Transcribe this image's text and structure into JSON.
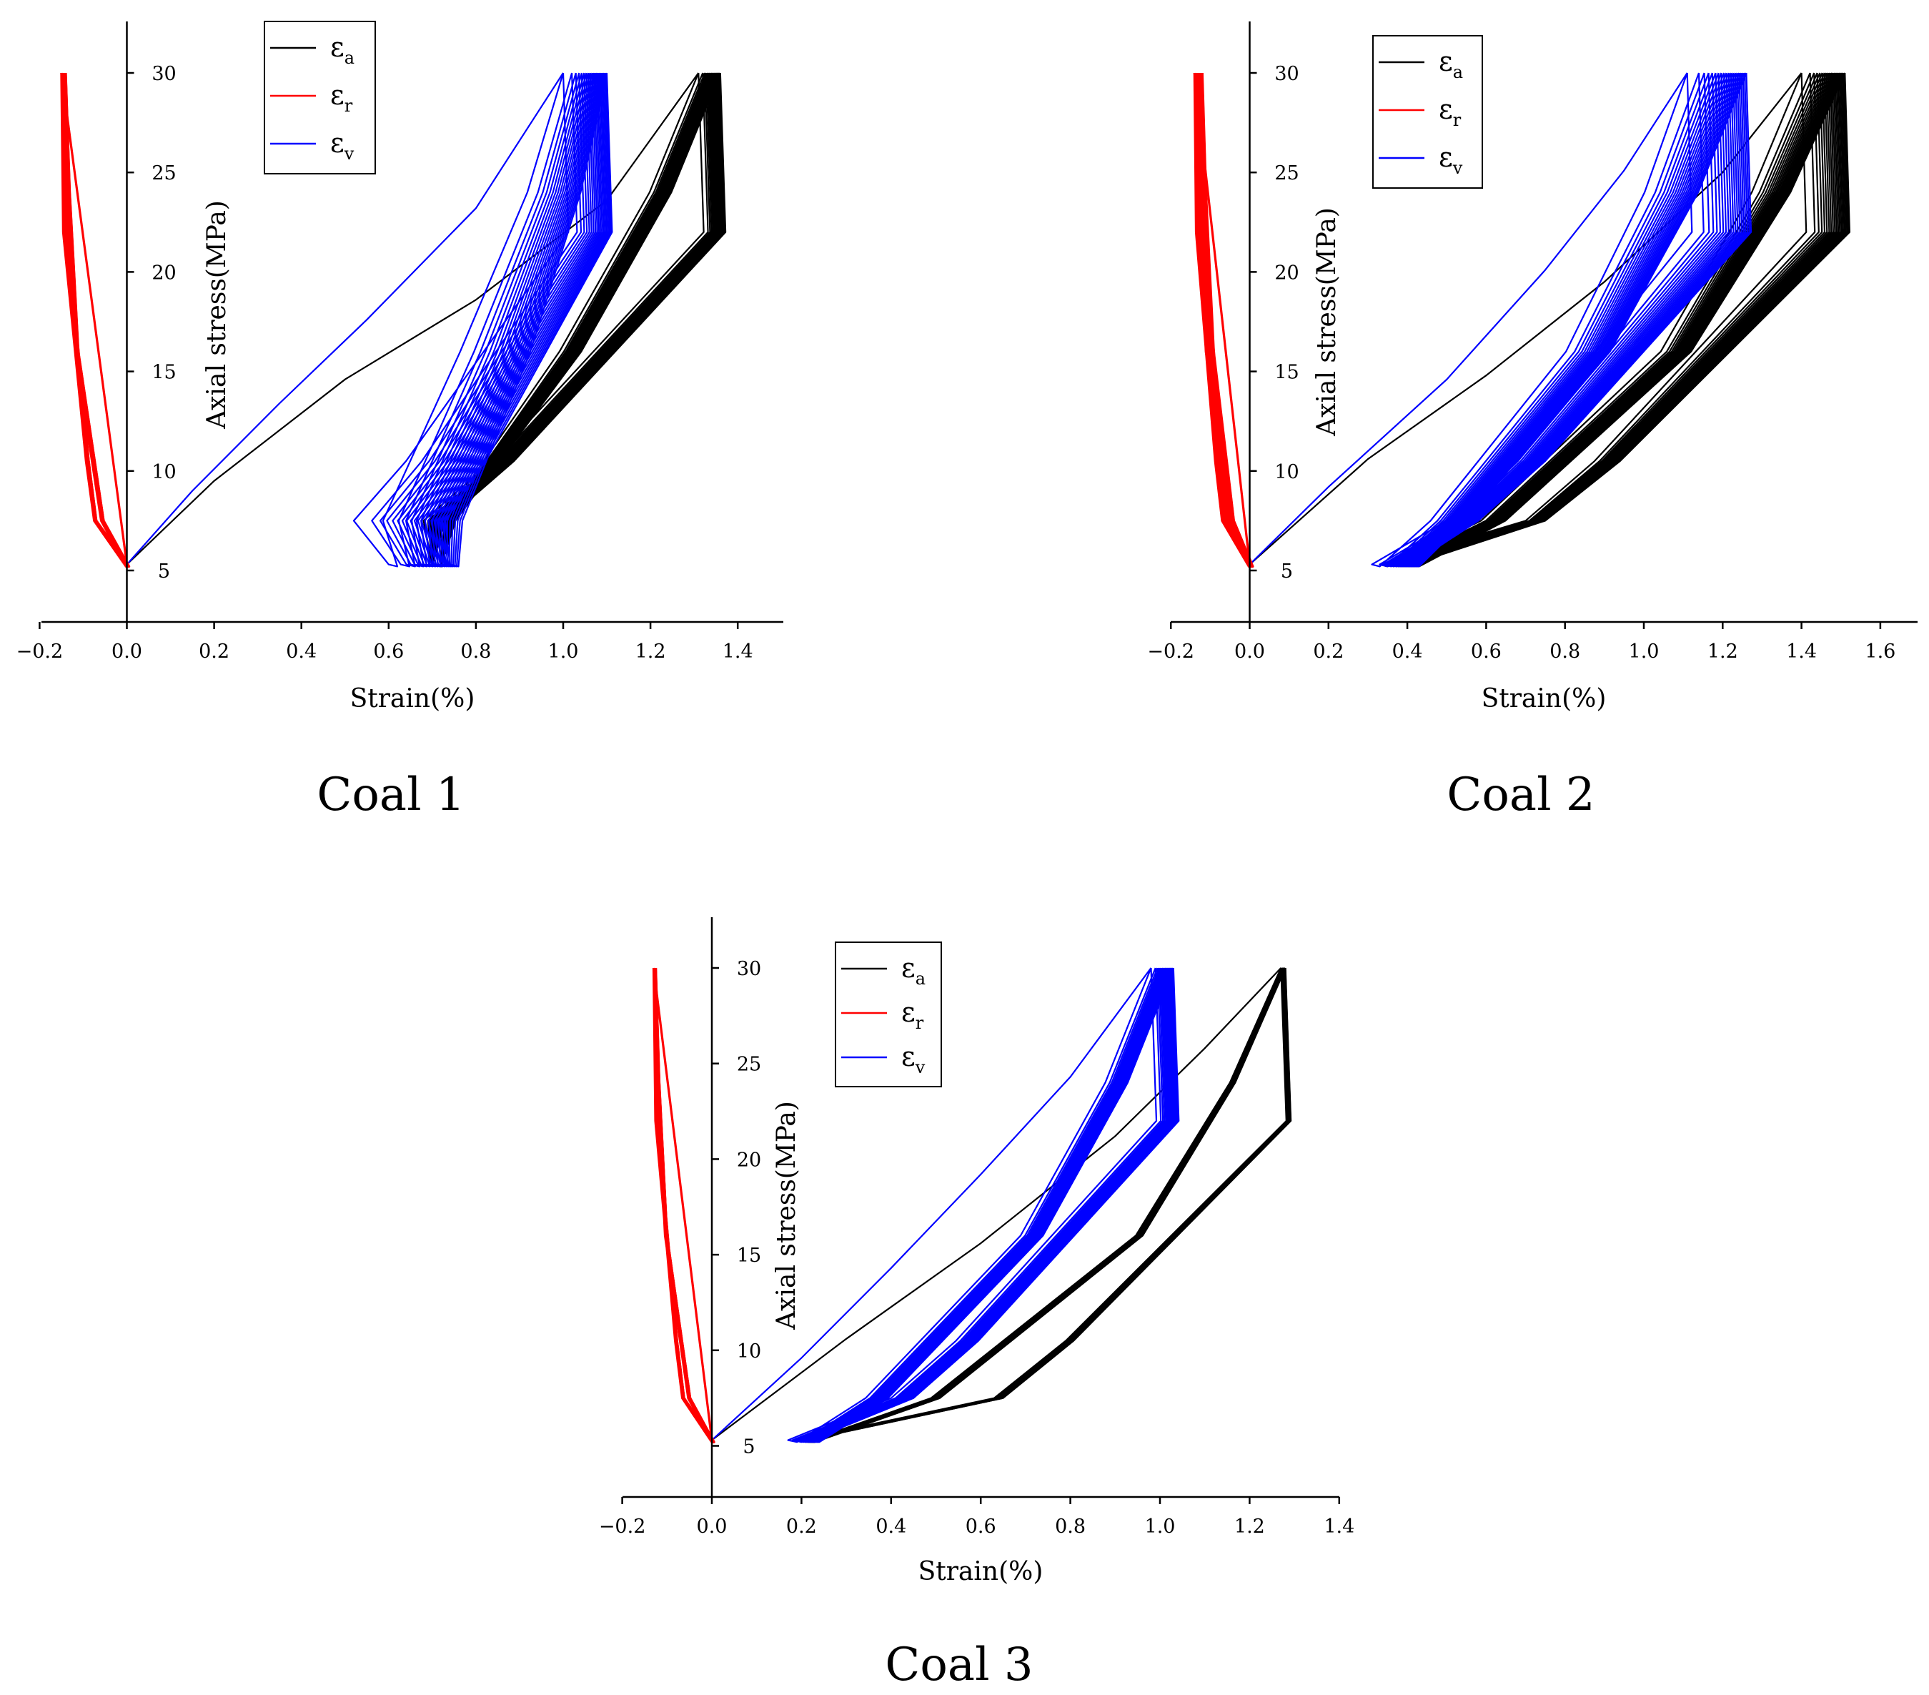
{
  "figure": {
    "axis_label_x": "Strain(%)",
    "axis_label_y": "Axial stress(MPa)"
  },
  "chart_data": [
    {
      "type": "line",
      "panel": "Coal 1",
      "title": "",
      "caption": "Coal 1",
      "xlabel": "Strain(%)",
      "ylabel": "Axial stress(MPa)",
      "xlim": [
        -0.2,
        1.5
      ],
      "ylim": [
        2.5,
        32.5
      ],
      "xticks": [
        -0.2,
        0.0,
        0.2,
        0.4,
        0.6,
        0.8,
        1.0,
        1.2,
        1.4
      ],
      "xtick_labels": [
        "−0.2",
        "0.0",
        "0.2",
        "0.4",
        "0.6",
        "0.8",
        "1.0",
        "1.2",
        "1.4"
      ],
      "yticks": [
        5,
        10,
        15,
        20,
        25,
        30
      ],
      "ytick_labels": [
        "5",
        "10",
        "15",
        "20",
        "25",
        "30"
      ],
      "grid": false,
      "legend_position": "top-center",
      "cycles": {
        "stress_min": 5,
        "stress_max": 30,
        "first_peak_stress": 30,
        "cycle_count": 20
      },
      "series": [
        {
          "name": "εa",
          "symbol": "ε",
          "subscript": "a",
          "color": "#000000",
          "first_loading": [
            [
              0.0,
              5.3
            ],
            [
              0.2,
              9.5
            ],
            [
              0.5,
              14.6
            ],
            [
              0.8,
              18.6
            ],
            [
              1.1,
              23.6
            ],
            [
              1.31,
              30
            ]
          ],
          "peak_strain_start": 1.31,
          "peak_strain_end": 1.36,
          "valley_strain_start": 0.7,
          "valley_strain_end": 0.7,
          "mid_strain_start": 0.68,
          "mid_strain_end": 0.73
        },
        {
          "name": "εr",
          "symbol": "ε",
          "subscript": "r",
          "color": "#ff0000",
          "first_loading": [
            [
              0.0,
              5.3
            ],
            [
              -0.15,
              30
            ]
          ],
          "peak_strain_start": -0.15,
          "peak_strain_end": -0.14,
          "valley_strain_start": -0.005,
          "valley_strain_end": 0.002,
          "mid_strain_start": -0.075,
          "mid_strain_end": -0.07
        },
        {
          "name": "εv",
          "symbol": "ε",
          "subscript": "v",
          "color": "#0000ff",
          "first_loading": [
            [
              0.0,
              5.3
            ],
            [
              0.15,
              9.0
            ],
            [
              0.35,
              13.4
            ],
            [
              0.55,
              17.6
            ],
            [
              0.8,
              23.2
            ],
            [
              1.0,
              30
            ]
          ],
          "peak_strain_start": 1.0,
          "peak_strain_end": 1.1,
          "valley_strain_start": 0.6,
          "valley_strain_end": 0.74,
          "mid_strain_start": 0.52,
          "mid_strain_end": 0.73
        }
      ]
    },
    {
      "type": "line",
      "panel": "Coal 2",
      "title": "",
      "caption": "Coal 2",
      "xlabel": "Strain(%)",
      "ylabel": "Axial stress(MPa)",
      "xlim": [
        -0.2,
        1.7
      ],
      "ylim": [
        2.5,
        32.5
      ],
      "xticks": [
        -0.2,
        0.0,
        0.2,
        0.4,
        0.6,
        0.8,
        1.0,
        1.2,
        1.4,
        1.6
      ],
      "xtick_labels": [
        "−0.2",
        "0.0",
        "0.2",
        "0.4",
        "0.6",
        "0.8",
        "1.0",
        "1.2",
        "1.4",
        "1.6"
      ],
      "yticks": [
        5,
        10,
        15,
        20,
        25,
        30
      ],
      "ytick_labels": [
        "5",
        "10",
        "15",
        "20",
        "25",
        "30"
      ],
      "grid": false,
      "legend_position": "top-center",
      "cycles": {
        "stress_min": 5,
        "stress_max": 30,
        "first_peak_stress": 30,
        "cycle_count": 20
      },
      "series": [
        {
          "name": "εa",
          "symbol": "ε",
          "subscript": "a",
          "color": "#000000",
          "first_loading": [
            [
              0.0,
              5.3
            ],
            [
              0.3,
              10.6
            ],
            [
              0.6,
              14.8
            ],
            [
              0.9,
              19.5
            ],
            [
              1.2,
              25.0
            ],
            [
              1.4,
              30
            ]
          ],
          "peak_strain_start": 1.4,
          "peak_strain_end": 1.51,
          "valley_strain_start": 0.33,
          "valley_strain_end": 0.41,
          "mid_strain_start": 0.7,
          "mid_strain_end": 0.75
        },
        {
          "name": "εr",
          "symbol": "ε",
          "subscript": "r",
          "color": "#ff0000",
          "first_loading": [
            [
              0.0,
              5.3
            ],
            [
              -0.14,
              30
            ]
          ],
          "peak_strain_start": -0.14,
          "peak_strain_end": -0.12,
          "valley_strain_start": -0.005,
          "valley_strain_end": 0.005,
          "mid_strain_start": -0.07,
          "mid_strain_end": -0.05
        },
        {
          "name": "εv",
          "symbol": "ε",
          "subscript": "v",
          "color": "#0000ff",
          "first_loading": [
            [
              0.0,
              5.3
            ],
            [
              0.2,
              9.2
            ],
            [
              0.5,
              14.6
            ],
            [
              0.75,
              20.1
            ],
            [
              0.95,
              25.1
            ],
            [
              1.11,
              30
            ]
          ],
          "peak_strain_start": 1.11,
          "peak_strain_end": 1.26,
          "valley_strain_start": 0.31,
          "valley_strain_end": 0.41,
          "mid_strain_start": 0.5,
          "mid_strain_end": 0.58
        }
      ]
    },
    {
      "type": "line",
      "panel": "Coal 3",
      "title": "",
      "caption": "Coal 3",
      "xlabel": "Strain(%)",
      "ylabel": "Axial stress(MPa)",
      "xlim": [
        -0.2,
        1.4
      ],
      "ylim": [
        2.5,
        32.5
      ],
      "xticks": [
        -0.2,
        0.0,
        0.2,
        0.4,
        0.6,
        0.8,
        1.0,
        1.2,
        1.4
      ],
      "xtick_labels": [
        "−0.2",
        "0.0",
        "0.2",
        "0.4",
        "0.6",
        "0.8",
        "1.0",
        "1.2",
        "1.4"
      ],
      "yticks": [
        5,
        10,
        15,
        20,
        25,
        30
      ],
      "ytick_labels": [
        "5",
        "10",
        "15",
        "20",
        "25",
        "30"
      ],
      "grid": false,
      "legend_position": "top-center",
      "cycles": {
        "stress_min": 5,
        "stress_max": 30,
        "first_peak_stress": 30,
        "cycle_count": 20
      },
      "series": [
        {
          "name": "εa",
          "symbol": "ε",
          "subscript": "a",
          "color": "#000000",
          "first_loading": [
            [
              0.0,
              5.3
            ],
            [
              0.3,
              10.6
            ],
            [
              0.6,
              15.6
            ],
            [
              0.9,
              21.2
            ],
            [
              1.1,
              25.8
            ],
            [
              1.27,
              30
            ]
          ],
          "peak_strain_start": 1.27,
          "peak_strain_end": 1.28,
          "valley_strain_start": 0.19,
          "valley_strain_end": 0.21,
          "mid_strain_start": 0.63,
          "mid_strain_end": 0.65
        },
        {
          "name": "εr",
          "symbol": "ε",
          "subscript": "r",
          "color": "#ff0000",
          "first_loading": [
            [
              0.0,
              5.3
            ],
            [
              -0.13,
              30
            ]
          ],
          "peak_strain_start": -0.13,
          "peak_strain_end": -0.125,
          "valley_strain_start": -0.003,
          "valley_strain_end": 0.002,
          "mid_strain_start": -0.066,
          "mid_strain_end": -0.062
        },
        {
          "name": "εv",
          "symbol": "ε",
          "subscript": "v",
          "color": "#0000ff",
          "first_loading": [
            [
              0.0,
              5.3
            ],
            [
              0.2,
              9.6
            ],
            [
              0.4,
              14.3
            ],
            [
              0.6,
              19.2
            ],
            [
              0.8,
              24.3
            ],
            [
              0.98,
              30
            ]
          ],
          "peak_strain_start": 0.98,
          "peak_strain_end": 1.03,
          "valley_strain_start": 0.17,
          "valley_strain_end": 0.22,
          "mid_strain_start": 0.4,
          "mid_strain_end": 0.45
        }
      ]
    }
  ]
}
